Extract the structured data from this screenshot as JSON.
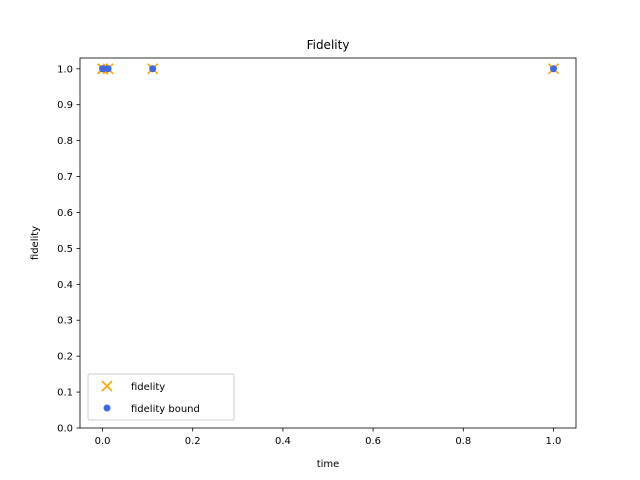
{
  "chart_data": {
    "type": "scatter",
    "title": "Fidelity",
    "xlabel": "time",
    "ylabel": "fidelity",
    "xlim": [
      -0.05,
      1.05
    ],
    "ylim": [
      0.0,
      1.03
    ],
    "xticks": [
      0.0,
      0.2,
      0.4,
      0.6,
      0.8,
      1.0
    ],
    "xtick_labels": [
      "0.0",
      "0.2",
      "0.4",
      "0.6",
      "0.8",
      "1.0"
    ],
    "yticks": [
      0.0,
      0.1,
      0.2,
      0.3,
      0.4,
      0.5,
      0.6,
      0.7,
      0.8,
      0.9,
      1.0
    ],
    "ytick_labels": [
      "0.0",
      "0.1",
      "0.2",
      "0.3",
      "0.4",
      "0.5",
      "0.6",
      "0.7",
      "0.8",
      "0.9",
      "1.0"
    ],
    "grid": false,
    "legend_position": "lower-left",
    "series": [
      {
        "name": "fidelity",
        "marker": "x",
        "color": "#ffa500",
        "x": [
          0.0,
          0.0012,
          0.0123,
          0.1111,
          1.0
        ],
        "y": [
          1.0,
          1.0,
          1.0,
          1.0,
          1.0
        ]
      },
      {
        "name": "fidelity bound",
        "marker": "circle",
        "color": "#4169e1",
        "x": [
          0.0,
          0.0012,
          0.0123,
          0.1111,
          1.0
        ],
        "y": [
          1.0,
          1.0,
          1.0,
          1.0,
          1.0
        ]
      }
    ]
  }
}
